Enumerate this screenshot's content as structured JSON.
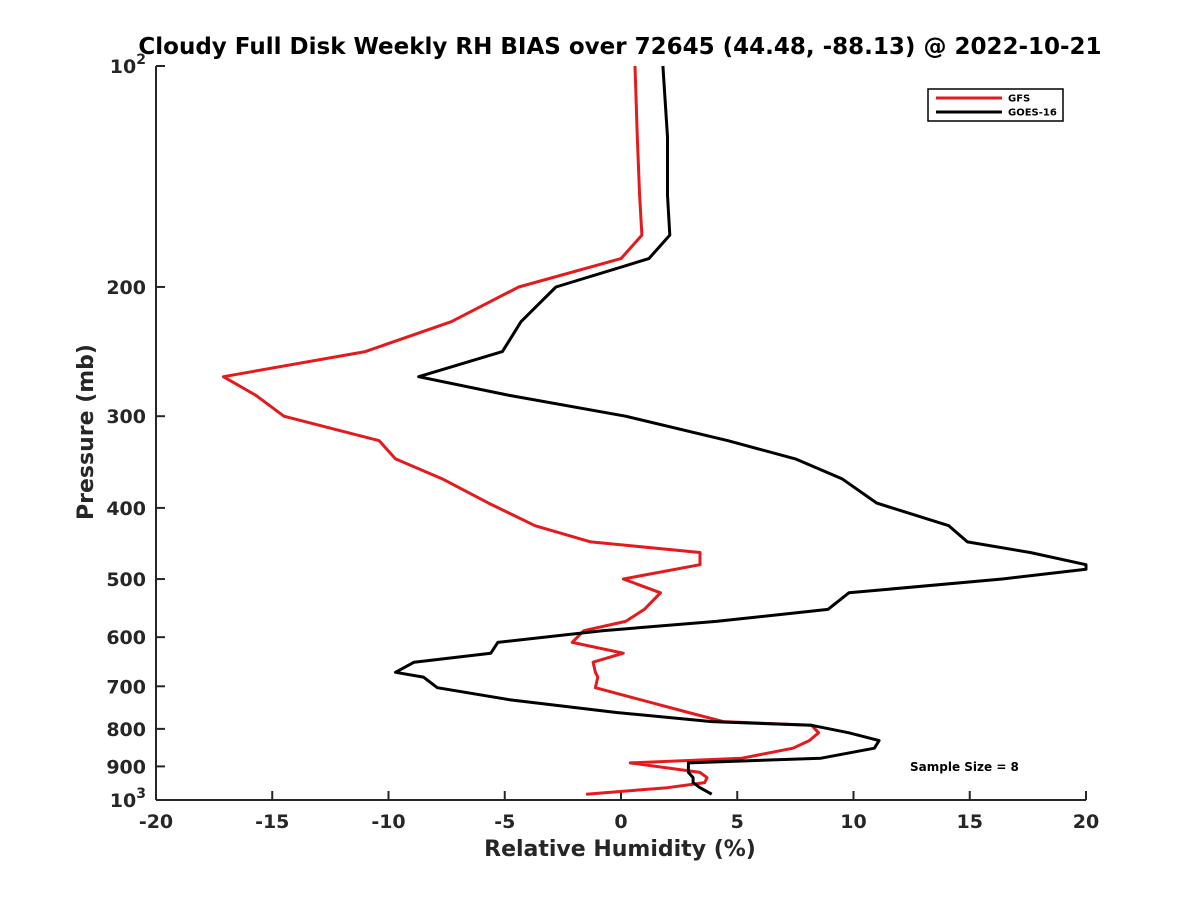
{
  "chart_data": {
    "type": "line",
    "title": "Cloudy Full Disk Weekly RH BIAS over 72645 (44.48, -88.13) @ 2022-10-21",
    "xlabel": "Relative Humidity (%)",
    "ylabel": "Pressure (mb)",
    "xlim": [
      -20,
      20
    ],
    "ylim": [
      100,
      1000
    ],
    "y_scale": "log",
    "y_reversed": true,
    "grid": false,
    "legend_position": "top-right",
    "x_ticks": [
      -20,
      -15,
      -10,
      -5,
      0,
      5,
      10,
      15,
      20
    ],
    "x_tick_labels": [
      "-20",
      "-15",
      "-10",
      "-5",
      "0",
      "5",
      "10",
      "15",
      "20"
    ],
    "y_ticks": [
      100,
      200,
      300,
      400,
      500,
      600,
      700,
      800,
      900,
      1000
    ],
    "y_tick_labels": [
      {
        "base": "10",
        "exp": "2"
      },
      {
        "base": "200",
        "exp": ""
      },
      {
        "base": "300",
        "exp": ""
      },
      {
        "base": "400",
        "exp": ""
      },
      {
        "base": "500",
        "exp": ""
      },
      {
        "base": "600",
        "exp": ""
      },
      {
        "base": "700",
        "exp": ""
      },
      {
        "base": "800",
        "exp": ""
      },
      {
        "base": "900",
        "exp": ""
      },
      {
        "base": "10",
        "exp": "3"
      }
    ],
    "series": [
      {
        "name": "GFS",
        "color": "#e41a1c",
        "points": [
          [
            0.6,
            100
          ],
          [
            0.7,
            125
          ],
          [
            0.8,
            150
          ],
          [
            0.9,
            170
          ],
          [
            0.0,
            183
          ],
          [
            -4.4,
            200
          ],
          [
            -7.3,
            223
          ],
          [
            -11.0,
            245
          ],
          [
            -17.1,
            265
          ],
          [
            -15.7,
            281
          ],
          [
            -14.5,
            300
          ],
          [
            -10.4,
            324
          ],
          [
            -9.7,
            343
          ],
          [
            -7.7,
            365
          ],
          [
            -5.7,
            394
          ],
          [
            -3.7,
            423
          ],
          [
            -1.3,
            445
          ],
          [
            3.4,
            460
          ],
          [
            3.4,
            478
          ],
          [
            0.1,
            500
          ],
          [
            1.7,
            522
          ],
          [
            1.0,
            550
          ],
          [
            0.2,
            571
          ],
          [
            -1.6,
            588
          ],
          [
            -2.1,
            610
          ],
          [
            0.1,
            631
          ],
          [
            -1.2,
            649
          ],
          [
            -1.1,
            670
          ],
          [
            -1.0,
            680
          ],
          [
            -1.1,
            703
          ],
          [
            2.9,
            760
          ],
          [
            4.4,
            782
          ],
          [
            8.2,
            791
          ],
          [
            8.5,
            810
          ],
          [
            8.1,
            830
          ],
          [
            7.4,
            850
          ],
          [
            5.2,
            877
          ],
          [
            0.4,
            890
          ],
          [
            3.4,
            917
          ],
          [
            3.7,
            932
          ],
          [
            3.6,
            947
          ],
          [
            2.0,
            962
          ],
          [
            -1.5,
            982
          ]
        ]
      },
      {
        "name": "GOES-16",
        "color": "#000000",
        "points": [
          [
            1.8,
            100
          ],
          [
            2.0,
            125
          ],
          [
            2.0,
            150
          ],
          [
            2.1,
            170
          ],
          [
            1.2,
            183
          ],
          [
            -2.8,
            200
          ],
          [
            -4.3,
            223
          ],
          [
            -5.1,
            245
          ],
          [
            -8.7,
            265
          ],
          [
            -4.8,
            281
          ],
          [
            0.2,
            300
          ],
          [
            4.6,
            324
          ],
          [
            7.5,
            343
          ],
          [
            9.5,
            365
          ],
          [
            11.0,
            394
          ],
          [
            14.1,
            423
          ],
          [
            14.9,
            445
          ],
          [
            17.6,
            460
          ],
          [
            20.0,
            478
          ],
          [
            20.0,
            485
          ],
          [
            16.4,
            500
          ],
          [
            9.8,
            522
          ],
          [
            8.9,
            550
          ],
          [
            4.1,
            571
          ],
          [
            -0.8,
            588
          ],
          [
            -5.3,
            610
          ],
          [
            -5.6,
            631
          ],
          [
            -8.9,
            649
          ],
          [
            -9.7,
            670
          ],
          [
            -8.5,
            680
          ],
          [
            -7.9,
            703
          ],
          [
            -4.8,
            730
          ],
          [
            -0.2,
            760
          ],
          [
            3.9,
            782
          ],
          [
            8.2,
            791
          ],
          [
            9.8,
            810
          ],
          [
            11.1,
            830
          ],
          [
            10.9,
            850
          ],
          [
            8.6,
            877
          ],
          [
            2.9,
            890
          ],
          [
            2.9,
            917
          ],
          [
            3.1,
            932
          ],
          [
            3.1,
            947
          ],
          [
            3.4,
            962
          ],
          [
            3.9,
            982
          ]
        ]
      }
    ],
    "annotations": [
      {
        "text": "Sample Size = 8"
      }
    ]
  }
}
